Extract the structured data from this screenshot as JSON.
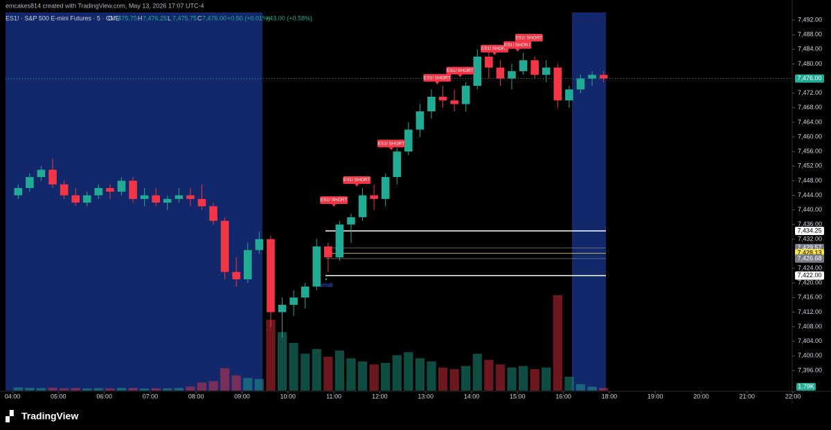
{
  "header": {
    "credit": "emcakes814 created with TradingView.com, May 13, 2026 17:07 UTC-4",
    "symbol": "ES1! · S&P 500 E-mini Futures · 5 · CME",
    "ohlc": [
      {
        "key": "O",
        "value": "7,475.75"
      },
      {
        "key": "H",
        "value": "7,476.25"
      },
      {
        "key": "L",
        "value": "7,475.75"
      },
      {
        "key": "C",
        "value": "7,476.00"
      }
    ],
    "change": "+0.50 (+0.01%)",
    "day_change": "+43.00 (+0.58%)"
  },
  "footer": {
    "brand": "TradingView"
  },
  "chart_data": {
    "type": "candlestick",
    "x": [
      "04:00",
      "04:15",
      "04:30",
      "04:45",
      "05:00",
      "05:15",
      "05:30",
      "05:45",
      "06:00",
      "06:15",
      "06:30",
      "06:45",
      "07:00",
      "07:15",
      "07:30",
      "07:45",
      "08:00",
      "08:15",
      "08:30",
      "08:45",
      "09:00",
      "09:15",
      "09:30",
      "09:45",
      "10:00",
      "10:15",
      "10:30",
      "10:45",
      "11:00",
      "11:15",
      "11:30",
      "11:45",
      "12:00",
      "12:15",
      "12:30",
      "12:45",
      "13:00",
      "13:15",
      "13:30",
      "13:45",
      "14:00",
      "14:15",
      "14:30",
      "14:45",
      "15:00",
      "15:15",
      "15:30",
      "15:45",
      "16:00",
      "16:15",
      "16:30",
      "16:45"
    ],
    "open": [
      7444,
      7446,
      7449,
      7451,
      7447,
      7444,
      7442,
      7444,
      7446,
      7445,
      7448,
      7443,
      7444,
      7442,
      7443,
      7444,
      7443,
      7441,
      7437,
      7423,
      7421,
      7429,
      7432,
      7412,
      7414,
      7416,
      7419,
      7430,
      7427,
      7436,
      7438,
      7444,
      7443,
      7449,
      7456,
      7462,
      7467,
      7471,
      7470,
      7469,
      7474,
      7482,
      7479,
      7476,
      7478,
      7481,
      7477,
      7479,
      7470,
      7473,
      7476,
      7477
    ],
    "high": [
      7447,
      7450,
      7452,
      7454,
      7448,
      7446,
      7445,
      7447,
      7447,
      7449,
      7449,
      7446,
      7446,
      7444,
      7446,
      7446,
      7447,
      7442,
      7438,
      7427,
      7431,
      7434,
      7433,
      7416,
      7418,
      7420,
      7432,
      7431,
      7437,
      7439,
      7446,
      7447,
      7450,
      7457,
      7464,
      7469,
      7473,
      7474,
      7473,
      7475,
      7484,
      7484,
      7481,
      7480,
      7483,
      7482,
      7481,
      7480,
      7474,
      7477,
      7478,
      7478
    ],
    "low": [
      7443,
      7445,
      7448,
      7446,
      7443,
      7441,
      7441,
      7443,
      7443,
      7444,
      7442,
      7441,
      7441,
      7440,
      7442,
      7441,
      7440,
      7436,
      7421,
      7419,
      7420,
      7428,
      7408,
      7405,
      7411,
      7413,
      7418,
      7423,
      7426,
      7431,
      7437,
      7440,
      7441,
      7447,
      7455,
      7460,
      7465,
      7468,
      7467,
      7467,
      7473,
      7476,
      7474,
      7473,
      7477,
      7476,
      7475,
      7468,
      7468,
      7472,
      7474,
      7475
    ],
    "close": [
      7446,
      7449,
      7451,
      7447,
      7444,
      7442,
      7444,
      7446,
      7445,
      7448,
      7443,
      7444,
      7442,
      7443,
      7444,
      7443,
      7441,
      7437,
      7423,
      7421,
      7429,
      7432,
      7412,
      7414,
      7416,
      7419,
      7430,
      7427,
      7436,
      7438,
      7444,
      7443,
      7449,
      7456,
      7462,
      7467,
      7471,
      7470,
      7469,
      7474,
      7482,
      7479,
      7476,
      7478,
      7481,
      7477,
      7479,
      7470,
      7473,
      7476,
      7477,
      7476
    ],
    "up_color": "#22ab94",
    "down_color": "#f23645",
    "volume": {
      "values": [
        2100,
        1800,
        1600,
        1900,
        1500,
        1700,
        1400,
        1600,
        1500,
        1800,
        1700,
        1400,
        1600,
        1500,
        1700,
        2600,
        5200,
        6100,
        14500,
        9800,
        8200,
        7600,
        46000,
        38000,
        31000,
        24000,
        27000,
        22000,
        26000,
        21000,
        19000,
        17000,
        18000,
        23000,
        25000,
        21000,
        19000,
        15000,
        14000,
        16000,
        24000,
        20000,
        17000,
        15000,
        16000,
        14000,
        15000,
        62000,
        9000,
        4200,
        2600,
        1790
      ],
      "last_label": "1.79K"
    },
    "ylim": [
      7390.5,
      7494.1
    ],
    "yticks": [
      {
        "value": 7396,
        "label": "7,396.00"
      },
      {
        "value": 7400,
        "label": "7,400.00"
      },
      {
        "value": 7404,
        "label": "7,404.00"
      },
      {
        "value": 7408,
        "label": "7,408.00"
      },
      {
        "value": 7412,
        "label": "7,412.00"
      },
      {
        "value": 7416,
        "label": "7,416.00"
      },
      {
        "value": 7420,
        "label": "7,420.00"
      },
      {
        "value": 7424,
        "label": "7,424.00"
      },
      {
        "value": 7432,
        "label": "7,432.00"
      },
      {
        "value": 7436,
        "label": "7,436.00"
      },
      {
        "value": 7440,
        "label": "7,440.00"
      },
      {
        "value": 7444,
        "label": "7,444.00"
      },
      {
        "value": 7448,
        "label": "7,448.00"
      },
      {
        "value": 7452,
        "label": "7,452.00"
      },
      {
        "value": 7456,
        "label": "7,456.00"
      },
      {
        "value": 7460,
        "label": "7,460.00"
      },
      {
        "value": 7464,
        "label": "7,464.00"
      },
      {
        "value": 7468,
        "label": "7,468.00"
      },
      {
        "value": 7472,
        "label": "7,472.00"
      },
      {
        "value": 7480,
        "label": "7,480.00"
      },
      {
        "value": 7484,
        "label": "7,484.00"
      },
      {
        "value": 7488,
        "label": "7,488.00"
      },
      {
        "value": 7492,
        "label": "7,492.00"
      }
    ],
    "xticks": [
      "04:00",
      "05:00",
      "06:00",
      "07:00",
      "08:00",
      "09:00",
      "10:00",
      "11:00",
      "12:00",
      "13:00",
      "14:00",
      "15:00",
      "16:00",
      "18:00",
      "19:00",
      "20:00",
      "21:00",
      "22:00"
    ],
    "levels": [
      {
        "value": 7434.25,
        "label": "7,434.25",
        "color": "#ffffff",
        "text_color": "#000000"
      },
      {
        "value": 7429.57,
        "label": "7,429.57",
        "color": "#787b86",
        "text_color": "#ffffff"
      },
      {
        "value": 7428.13,
        "label": "7,428.13",
        "color": "#f7e24a",
        "text_color": "#000000"
      },
      {
        "value": 7426.68,
        "label": "7,426.68",
        "color": "#787b86",
        "text_color": "#ffffff"
      },
      {
        "value": 7422.0,
        "label": "7,422.00",
        "color": "#ffffff",
        "text_color": "#000000"
      }
    ],
    "last_price": {
      "value": 7476.0,
      "label": "7,476.00",
      "color": "#22ab94"
    },
    "signals": [
      {
        "x": "11:00",
        "y": 7440.5,
        "label": "ES1! SHORT"
      },
      {
        "x": "11:30",
        "y": 7446,
        "label": "ES1! SHORT"
      },
      {
        "x": "12:15",
        "y": 7456,
        "label": "ES1! SHORT"
      },
      {
        "x": "13:15",
        "y": 7474,
        "label": "ES1! SHORT"
      },
      {
        "x": "13:45",
        "y": 7476,
        "label": "ES1! SHORT"
      },
      {
        "x": "14:30",
        "y": 7482,
        "label": "ES1! SHORT"
      },
      {
        "x": "15:00",
        "y": 7483,
        "label": "ES1! SHORT"
      },
      {
        "x": "15:15",
        "y": 7485,
        "label": "ES1! SHORT"
      }
    ],
    "notes": [
      {
        "x": "10:50",
        "y": 7421,
        "label": "small",
        "color": "#2962ff"
      }
    ]
  }
}
